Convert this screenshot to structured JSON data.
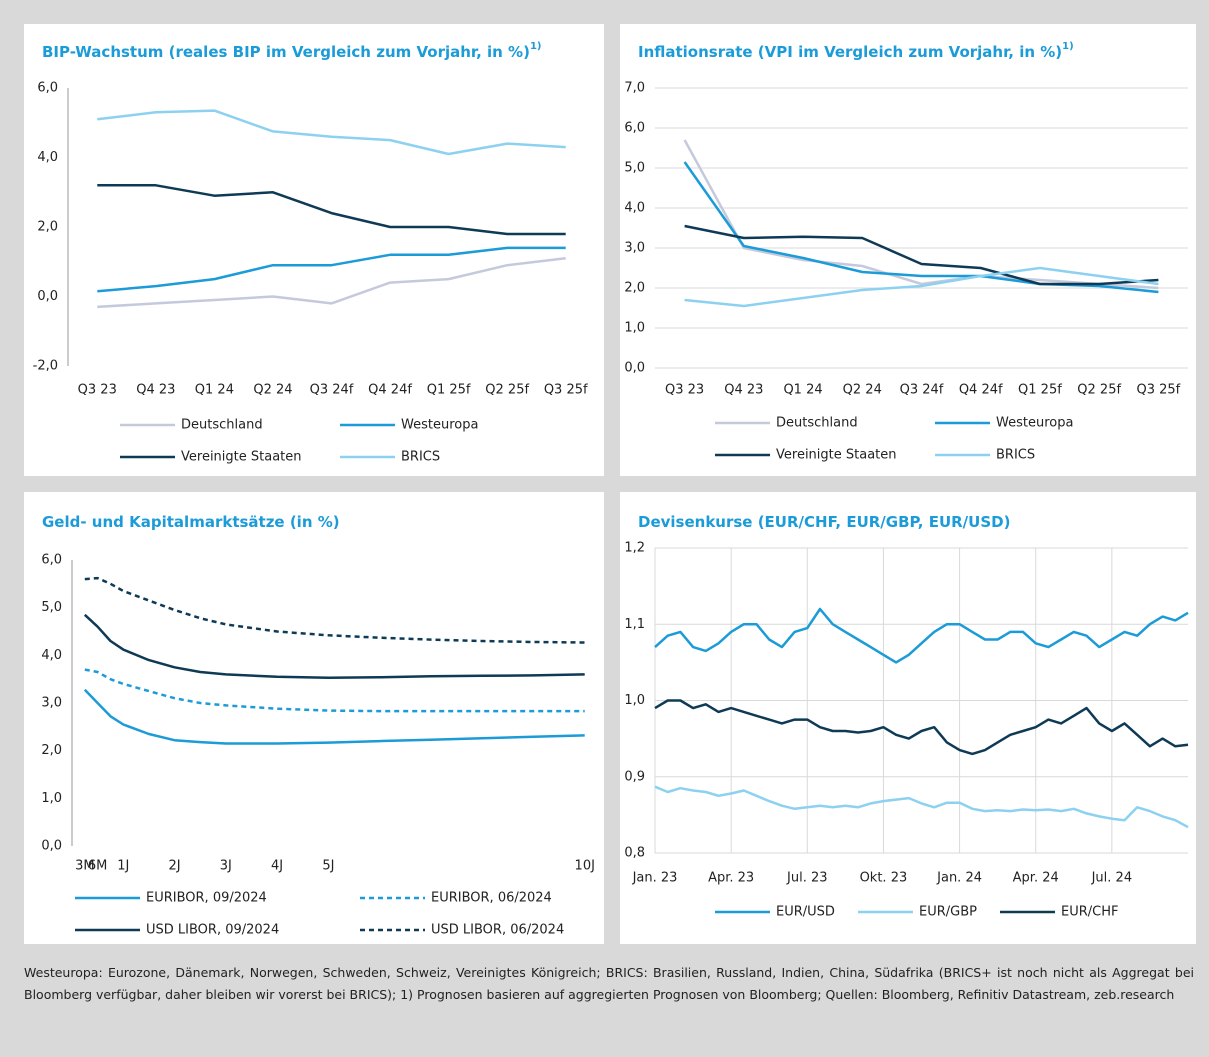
{
  "chart_data": [
    {
      "type": "line",
      "title": "BIP-Wachstum (reales BIP im Vergleich zum Vorjahr, in %)",
      "title_superscript": "1)",
      "categories": [
        "Q3 23",
        "Q4 23",
        "Q1 24",
        "Q2 24",
        "Q3 24f",
        "Q4 24f",
        "Q1 25f",
        "Q2 25f",
        "Q3 25f"
      ],
      "ylim": [
        -2,
        6
      ],
      "yticks": [
        {
          "value": -2,
          "label": "-2,0"
        },
        {
          "value": 0,
          "label": "0,0"
        },
        {
          "value": 2,
          "label": "2,0"
        },
        {
          "value": 4,
          "label": "4,0"
        },
        {
          "value": 6,
          "label": "6,0"
        }
      ],
      "grid": false,
      "series": [
        {
          "name": "Deutschland",
          "color": "#c5c9dc",
          "values": [
            -0.3,
            -0.2,
            -0.1,
            0.0,
            -0.2,
            0.4,
            0.5,
            0.9,
            1.1
          ]
        },
        {
          "name": "Westeuropa",
          "color": "#1b9bd7",
          "values": [
            0.15,
            0.3,
            0.5,
            0.9,
            0.9,
            1.2,
            1.2,
            1.4,
            1.4
          ]
        },
        {
          "name": "Vereinigte Staaten",
          "color": "#0e3a56",
          "values": [
            3.2,
            3.2,
            2.9,
            3.0,
            2.4,
            2.0,
            2.0,
            1.8,
            1.8
          ]
        },
        {
          "name": "BRICS",
          "color": "#8dd1f0",
          "values": [
            5.1,
            5.3,
            5.35,
            4.75,
            4.6,
            4.5,
            4.1,
            4.4,
            4.3
          ]
        }
      ]
    },
    {
      "type": "line",
      "title": "Inflationsrate (VPI im Vergleich zum Vorjahr, in %)",
      "title_superscript": "1)",
      "categories": [
        "Q3 23",
        "Q4 23",
        "Q1 24",
        "Q2 24",
        "Q3 24f",
        "Q4 24f",
        "Q1 25f",
        "Q2 25f",
        "Q3 25f"
      ],
      "ylim": [
        0,
        7
      ],
      "yticks": [
        {
          "value": 0,
          "label": "0,0"
        },
        {
          "value": 1,
          "label": "1,0"
        },
        {
          "value": 2,
          "label": "2,0"
        },
        {
          "value": 3,
          "label": "3,0"
        },
        {
          "value": 4,
          "label": "4,0"
        },
        {
          "value": 5,
          "label": "5,0"
        },
        {
          "value": 6,
          "label": "6,0"
        },
        {
          "value": 7,
          "label": "7,0"
        }
      ],
      "grid": true,
      "series": [
        {
          "name": "Deutschland",
          "color": "#c5c9dc",
          "values": [
            5.7,
            3.0,
            2.7,
            2.55,
            2.1,
            2.3,
            2.2,
            2.1,
            2.0
          ]
        },
        {
          "name": "Westeuropa",
          "color": "#1b9bd7",
          "values": [
            5.15,
            3.05,
            2.75,
            2.4,
            2.3,
            2.3,
            2.1,
            2.05,
            1.9
          ]
        },
        {
          "name": "Vereinigte Staaten",
          "color": "#0e3a56",
          "values": [
            3.55,
            3.25,
            3.28,
            3.25,
            2.6,
            2.5,
            2.1,
            2.1,
            2.2
          ]
        },
        {
          "name": "BRICS",
          "color": "#8dd1f0",
          "values": [
            1.7,
            1.55,
            1.75,
            1.95,
            2.05,
            2.3,
            2.5,
            2.3,
            2.1
          ]
        }
      ]
    },
    {
      "type": "line",
      "title": "Geld- und Kapitalmarktsätze (in %)",
      "x": [
        0.25,
        0.5,
        0.75,
        1,
        1.5,
        2,
        2.5,
        3,
        4,
        5,
        6,
        7,
        8,
        9,
        10
      ],
      "xlim": [
        0,
        10.2
      ],
      "xticks": [
        {
          "value": 0.25,
          "label": "3M"
        },
        {
          "value": 0.5,
          "label": "6M"
        },
        {
          "value": 1,
          "label": "1J"
        },
        {
          "value": 2,
          "label": "2J"
        },
        {
          "value": 3,
          "label": "3J"
        },
        {
          "value": 4,
          "label": "4J"
        },
        {
          "value": 5,
          "label": "5J"
        },
        {
          "value": 10,
          "label": "10J"
        }
      ],
      "ylim": [
        0,
        6
      ],
      "yticks": [
        {
          "value": 0,
          "label": "0,0"
        },
        {
          "value": 1,
          "label": "1,0"
        },
        {
          "value": 2,
          "label": "2,0"
        },
        {
          "value": 3,
          "label": "3,0"
        },
        {
          "value": 4,
          "label": "4,0"
        },
        {
          "value": 5,
          "label": "5,0"
        },
        {
          "value": 6,
          "label": "6,0"
        }
      ],
      "grid": false,
      "series": [
        {
          "name": "EURIBOR, 09/2024",
          "color": "#1b9bd7",
          "line_style": "solid",
          "values": [
            3.28,
            3.0,
            2.72,
            2.55,
            2.35,
            2.22,
            2.18,
            2.15,
            2.15,
            2.17,
            2.2,
            2.23,
            2.26,
            2.29,
            2.32
          ]
        },
        {
          "name": "EURIBOR, 06/2024",
          "color": "#1b9bd7",
          "line_style": "dashed",
          "values": [
            3.7,
            3.65,
            3.5,
            3.4,
            3.25,
            3.1,
            3.0,
            2.95,
            2.88,
            2.84,
            2.83,
            2.83,
            2.83,
            2.83,
            2.83
          ]
        },
        {
          "name": "USD LIBOR, 09/2024",
          "color": "#0e3a56",
          "line_style": "solid",
          "values": [
            4.85,
            4.6,
            4.3,
            4.12,
            3.9,
            3.75,
            3.65,
            3.6,
            3.55,
            3.53,
            3.54,
            3.56,
            3.57,
            3.58,
            3.6
          ]
        },
        {
          "name": "USD LIBOR, 06/2024",
          "color": "#0e3a56",
          "line_style": "dashed",
          "values": [
            5.6,
            5.62,
            5.5,
            5.35,
            5.15,
            4.95,
            4.78,
            4.65,
            4.5,
            4.42,
            4.37,
            4.33,
            4.3,
            4.28,
            4.27
          ]
        }
      ]
    },
    {
      "type": "line",
      "title": "Devisenkurse (EUR/CHF, EUR/GBP, EUR/USD)",
      "categories": [
        "Jan. 23",
        null,
        null,
        null,
        null,
        null,
        "Apr. 23",
        null,
        null,
        null,
        null,
        null,
        "Jul. 23",
        null,
        null,
        null,
        null,
        null,
        "Okt. 23",
        null,
        null,
        null,
        null,
        null,
        "Jan. 24",
        null,
        null,
        null,
        null,
        null,
        "Apr. 24",
        null,
        null,
        null,
        null,
        null,
        "Jul. 24",
        null,
        null,
        null,
        null,
        null,
        null
      ],
      "ylim": [
        0.8,
        1.2
      ],
      "yticks": [
        {
          "value": 0.8,
          "label": "0,8"
        },
        {
          "value": 0.9,
          "label": "0,9"
        },
        {
          "value": 1.0,
          "label": "1,0"
        },
        {
          "value": 1.1,
          "label": "1,1"
        },
        {
          "value": 1.2,
          "label": "1,2"
        }
      ],
      "grid": true,
      "series": [
        {
          "name": "EUR/USD",
          "color": "#1b9bd7",
          "values": [
            1.07,
            1.085,
            1.09,
            1.07,
            1.065,
            1.075,
            1.09,
            1.1,
            1.1,
            1.08,
            1.07,
            1.09,
            1.095,
            1.12,
            1.1,
            1.09,
            1.08,
            1.07,
            1.06,
            1.05,
            1.06,
            1.075,
            1.09,
            1.1,
            1.1,
            1.09,
            1.08,
            1.08,
            1.09,
            1.09,
            1.075,
            1.07,
            1.08,
            1.09,
            1.085,
            1.07,
            1.08,
            1.09,
            1.085,
            1.1,
            1.11,
            1.105,
            1.115
          ]
        },
        {
          "name": "EUR/GBP",
          "color": "#8dd1f0",
          "values": [
            0.887,
            0.88,
            0.885,
            0.882,
            0.88,
            0.875,
            0.878,
            0.882,
            0.875,
            0.868,
            0.862,
            0.858,
            0.86,
            0.862,
            0.86,
            0.862,
            0.86,
            0.865,
            0.868,
            0.87,
            0.872,
            0.865,
            0.86,
            0.866,
            0.866,
            0.858,
            0.855,
            0.856,
            0.855,
            0.857,
            0.856,
            0.857,
            0.855,
            0.858,
            0.852,
            0.848,
            0.845,
            0.843,
            0.86,
            0.855,
            0.848,
            0.843,
            0.834
          ]
        },
        {
          "name": "EUR/CHF",
          "color": "#0e3a56",
          "values": [
            0.99,
            1.0,
            1.0,
            0.99,
            0.995,
            0.985,
            0.99,
            0.985,
            0.98,
            0.975,
            0.97,
            0.975,
            0.975,
            0.965,
            0.96,
            0.96,
            0.958,
            0.96,
            0.965,
            0.955,
            0.95,
            0.96,
            0.965,
            0.945,
            0.935,
            0.93,
            0.935,
            0.945,
            0.955,
            0.96,
            0.965,
            0.975,
            0.97,
            0.98,
            0.99,
            0.97,
            0.96,
            0.97,
            0.955,
            0.94,
            0.95,
            0.94,
            0.942
          ]
        }
      ]
    }
  ],
  "footnote": "Westeuropa: Eurozone, Dänemark, Norwegen, Schweden, Schweiz, Vereinigtes Königreich; BRICS: Brasilien, Russland, Indien, China, Südafrika (BRICS+ ist noch nicht als Aggregat bei Bloomberg verfügbar, daher bleiben wir vorerst bei BRICS); 1) Prognosen basieren auf aggregierten Prognosen von Bloomberg; Quellen: Bloomberg, Refinitiv Datastream, zeb.research"
}
